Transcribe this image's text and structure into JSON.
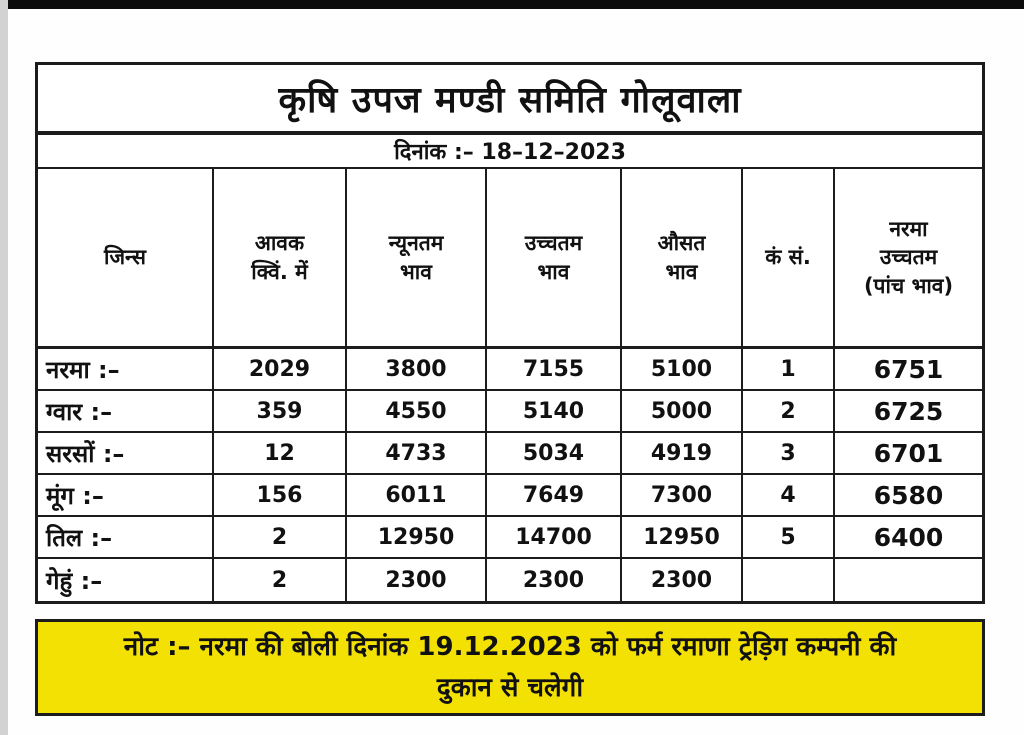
{
  "page": {
    "kind": "mandi-rate-notice-photo"
  },
  "colors": {
    "border": "#1c1c1c",
    "text": "#111111",
    "note_bg": "#F3E104",
    "top_bar": "#0b0b0b",
    "left_strip": "#d2d2d2",
    "page_bg": "#fefefe"
  },
  "table": {
    "title": "कृषि उपज मण्डी समिति गोलूवाला",
    "date": "दिनांक :– 18–12–2023",
    "columns": [
      "जिन्स",
      "आवक\nक्विं. में",
      "न्यूनतम\nभाव",
      "उच्चतम\nभाव",
      "औसत\nभाव",
      "कं सं.",
      "नरमा\nउच्चतम\n(पांच भाव)"
    ],
    "rows": [
      [
        "नरमा :–",
        "2029",
        "3800",
        "7155",
        "5100",
        "1",
        "6751"
      ],
      [
        "ग्वार :–",
        "359",
        "4550",
        "5140",
        "5000",
        "2",
        "6725"
      ],
      [
        "सरसों :–",
        "12",
        "4733",
        "5034",
        "4919",
        "3",
        "6701"
      ],
      [
        "मूंग :–",
        "156",
        "6011",
        "7649",
        "7300",
        "4",
        "6580"
      ],
      [
        "तिल :–",
        "2",
        "12950",
        "14700",
        "12950",
        "5",
        "6400"
      ],
      [
        "गेहुं :–",
        "2",
        "2300",
        "2300",
        "2300",
        "",
        ""
      ]
    ]
  },
  "note": {
    "text": "नोट :– नरमा की बोली दिनांक 19.12.2023 को फर्म रमाणा ट्रेड़िग कम्पनी की\nदुकान से चलेगी"
  }
}
